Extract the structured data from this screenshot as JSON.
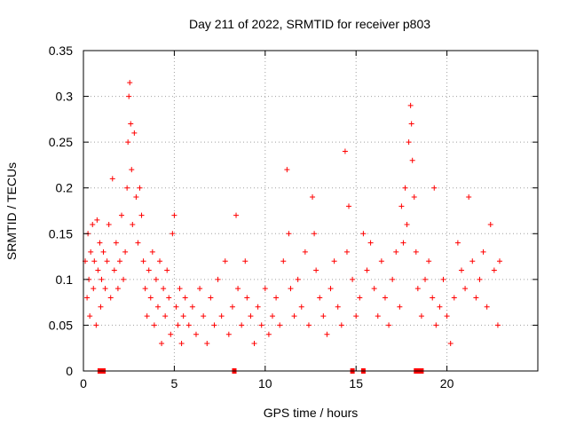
{
  "chart_data": {
    "type": "scatter",
    "title": "Day 211 of 2022, SRMTID for receiver p803",
    "xlabel": "GPS time / hours",
    "ylabel": "SRMTID / TECUs",
    "xlim": [
      0,
      25
    ],
    "ylim": [
      0,
      0.35
    ],
    "xticks": [
      0,
      5,
      10,
      15,
      20
    ],
    "xtick_labels": [
      "0",
      "5",
      "10",
      "15",
      "20"
    ],
    "yticks": [
      0,
      0.05,
      0.1,
      0.15,
      0.2,
      0.25,
      0.3,
      0.35
    ],
    "ytick_labels": [
      "0",
      "0.05",
      "0.1",
      "0.15",
      "0.2",
      "0.25",
      "0.3",
      "0.35"
    ],
    "grid": true,
    "marker": "+",
    "color": "#ff0000",
    "series": [
      {
        "name": "SRMTID",
        "points": [
          [
            0.1,
            0.12
          ],
          [
            0.2,
            0.08
          ],
          [
            0.25,
            0.15
          ],
          [
            0.3,
            0.1
          ],
          [
            0.35,
            0.06
          ],
          [
            0.4,
            0.13
          ],
          [
            0.5,
            0.16
          ],
          [
            0.55,
            0.09
          ],
          [
            0.6,
            0.12
          ],
          [
            0.7,
            0.05
          ],
          [
            0.75,
            0.165
          ],
          [
            0.8,
            0.11
          ],
          [
            0.9,
            0.14
          ],
          [
            0.95,
            0.07
          ],
          [
            1.0,
            0.1
          ],
          [
            1.1,
            0.13
          ],
          [
            1.2,
            0.09
          ],
          [
            1.3,
            0.12
          ],
          [
            1.4,
            0.16
          ],
          [
            1.5,
            0.08
          ],
          [
            1.6,
            0.21
          ],
          [
            1.7,
            0.11
          ],
          [
            1.8,
            0.14
          ],
          [
            1.9,
            0.09
          ],
          [
            2.0,
            0.12
          ],
          [
            2.1,
            0.17
          ],
          [
            2.2,
            0.1
          ],
          [
            2.3,
            0.13
          ],
          [
            2.4,
            0.2
          ],
          [
            2.45,
            0.25
          ],
          [
            2.5,
            0.3
          ],
          [
            2.55,
            0.315
          ],
          [
            2.6,
            0.27
          ],
          [
            2.65,
            0.22
          ],
          [
            2.7,
            0.16
          ],
          [
            2.8,
            0.26
          ],
          [
            2.9,
            0.19
          ],
          [
            3.0,
            0.14
          ],
          [
            3.1,
            0.2
          ],
          [
            3.2,
            0.17
          ],
          [
            3.3,
            0.12
          ],
          [
            3.4,
            0.09
          ],
          [
            3.5,
            0.06
          ],
          [
            3.6,
            0.11
          ],
          [
            3.7,
            0.08
          ],
          [
            3.8,
            0.13
          ],
          [
            3.9,
            0.05
          ],
          [
            4.0,
            0.1
          ],
          [
            4.1,
            0.07
          ],
          [
            4.2,
            0.12
          ],
          [
            4.3,
            0.03
          ],
          [
            4.4,
            0.09
          ],
          [
            4.5,
            0.06
          ],
          [
            4.6,
            0.11
          ],
          [
            4.7,
            0.08
          ],
          [
            4.8,
            0.04
          ],
          [
            4.9,
            0.15
          ],
          [
            5.0,
            0.17
          ],
          [
            5.1,
            0.07
          ],
          [
            5.2,
            0.05
          ],
          [
            5.3,
            0.09
          ],
          [
            5.4,
            0.03
          ],
          [
            5.5,
            0.06
          ],
          [
            5.6,
            0.08
          ],
          [
            5.8,
            0.05
          ],
          [
            6.0,
            0.07
          ],
          [
            6.2,
            0.04
          ],
          [
            6.4,
            0.09
          ],
          [
            6.6,
            0.06
          ],
          [
            6.8,
            0.03
          ],
          [
            7.0,
            0.08
          ],
          [
            7.2,
            0.05
          ],
          [
            7.4,
            0.1
          ],
          [
            7.6,
            0.06
          ],
          [
            7.8,
            0.12
          ],
          [
            8.0,
            0.04
          ],
          [
            8.2,
            0.07
          ],
          [
            8.4,
            0.17
          ],
          [
            8.5,
            0.09
          ],
          [
            8.7,
            0.05
          ],
          [
            8.9,
            0.12
          ],
          [
            9.0,
            0.08
          ],
          [
            9.2,
            0.06
          ],
          [
            9.4,
            0.03
          ],
          [
            9.6,
            0.07
          ],
          [
            9.8,
            0.05
          ],
          [
            10.0,
            0.09
          ],
          [
            10.2,
            0.04
          ],
          [
            10.4,
            0.06
          ],
          [
            10.6,
            0.08
          ],
          [
            10.8,
            0.05
          ],
          [
            11.0,
            0.12
          ],
          [
            11.2,
            0.22
          ],
          [
            11.3,
            0.15
          ],
          [
            11.4,
            0.09
          ],
          [
            11.6,
            0.06
          ],
          [
            11.8,
            0.1
          ],
          [
            12.0,
            0.07
          ],
          [
            12.2,
            0.13
          ],
          [
            12.4,
            0.05
          ],
          [
            12.6,
            0.19
          ],
          [
            12.7,
            0.15
          ],
          [
            12.8,
            0.11
          ],
          [
            13.0,
            0.08
          ],
          [
            13.2,
            0.06
          ],
          [
            13.4,
            0.04
          ],
          [
            13.6,
            0.09
          ],
          [
            13.8,
            0.12
          ],
          [
            14.0,
            0.07
          ],
          [
            14.2,
            0.05
          ],
          [
            14.4,
            0.24
          ],
          [
            14.5,
            0.13
          ],
          [
            14.6,
            0.18
          ],
          [
            14.8,
            0.1
          ],
          [
            15.0,
            0.06
          ],
          [
            15.2,
            0.08
          ],
          [
            15.4,
            0.15
          ],
          [
            15.6,
            0.11
          ],
          [
            15.8,
            0.14
          ],
          [
            16.0,
            0.09
          ],
          [
            16.2,
            0.06
          ],
          [
            16.4,
            0.12
          ],
          [
            16.6,
            0.08
          ],
          [
            16.8,
            0.05
          ],
          [
            17.0,
            0.1
          ],
          [
            17.2,
            0.13
          ],
          [
            17.4,
            0.07
          ],
          [
            17.5,
            0.18
          ],
          [
            17.6,
            0.14
          ],
          [
            17.7,
            0.2
          ],
          [
            17.8,
            0.16
          ],
          [
            17.9,
            0.25
          ],
          [
            18.0,
            0.29
          ],
          [
            18.05,
            0.27
          ],
          [
            18.1,
            0.23
          ],
          [
            18.2,
            0.19
          ],
          [
            18.3,
            0.13
          ],
          [
            18.4,
            0.09
          ],
          [
            18.6,
            0.06
          ],
          [
            18.8,
            0.1
          ],
          [
            19.0,
            0.12
          ],
          [
            19.2,
            0.08
          ],
          [
            19.3,
            0.2
          ],
          [
            19.4,
            0.05
          ],
          [
            19.6,
            0.07
          ],
          [
            19.8,
            0.1
          ],
          [
            20.0,
            0.06
          ],
          [
            20.2,
            0.03
          ],
          [
            20.4,
            0.08
          ],
          [
            20.6,
            0.14
          ],
          [
            20.8,
            0.11
          ],
          [
            21.0,
            0.09
          ],
          [
            21.2,
            0.19
          ],
          [
            21.4,
            0.12
          ],
          [
            21.6,
            0.08
          ],
          [
            21.8,
            0.1
          ],
          [
            22.0,
            0.13
          ],
          [
            22.2,
            0.07
          ],
          [
            22.4,
            0.16
          ],
          [
            22.6,
            0.11
          ],
          [
            22.8,
            0.05
          ],
          [
            22.9,
            0.12
          ]
        ]
      }
    ],
    "baseline_markers": [
      0.9,
      1.0,
      1.1,
      8.3,
      14.8,
      15.4,
      18.3,
      18.4,
      18.5,
      18.6
    ]
  }
}
